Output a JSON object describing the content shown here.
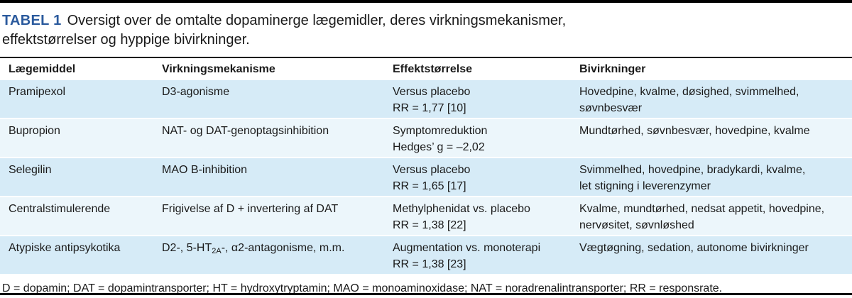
{
  "title": {
    "label": "TABEL 1",
    "line1": "Oversigt over de omtalte dopaminerge lægemidler, deres virkningsmekanismer,",
    "line2": "effektstørrelser og hyppige bivirkninger."
  },
  "table": {
    "headers": [
      "Lægemiddel",
      "Virkningsmekanisme",
      "Effektstørrelse",
      "Bivirkninger"
    ],
    "rows": [
      {
        "laegemiddel": "Pramipexol",
        "mech_pre": "D3-agonisme",
        "mech_sub": "",
        "mech_post": "",
        "effekt_line1": "Versus placebo",
        "effekt_line2": "RR = 1,77 [10]",
        "bivirk_line1": "Hovedpine, kvalme, døsighed, svimmelhed,",
        "bivirk_line2": "søvnbesvær"
      },
      {
        "laegemiddel": "Bupropion",
        "mech_pre": "NAT- og DAT-genoptagsinhibition",
        "mech_sub": "",
        "mech_post": "",
        "effekt_line1": "Symptomreduktion",
        "effekt_line2": "Hedges’ g = –2,02",
        "bivirk_line1": "Mundtørhed, søvnbesvær, hovedpine, kvalme",
        "bivirk_line2": ""
      },
      {
        "laegemiddel": "Selegilin",
        "mech_pre": "MAO B-inhibition",
        "mech_sub": "",
        "mech_post": "",
        "effekt_line1": "Versus placebo",
        "effekt_line2": "RR = 1,65 [17]",
        "bivirk_line1": "Svimmelhed, hovedpine, bradykardi, kvalme,",
        "bivirk_line2": "let stigning i leverenzymer"
      },
      {
        "laegemiddel": "Centralstimulerende",
        "mech_pre": "Frigivelse af D + invertering af DAT",
        "mech_sub": "",
        "mech_post": "",
        "effekt_line1": "Methylphenidat vs. placebo",
        "effekt_line2": "RR = 1,38 [22]",
        "bivirk_line1": "Kvalme, mundtørhed, nedsat appetit, hovedpine,",
        "bivirk_line2": "nervøsitet, søvnløshed"
      },
      {
        "laegemiddel": "Atypiske antipsykotika",
        "mech_pre": "D2-, 5-HT",
        "mech_sub": "2A",
        "mech_post": "-, α2-antagonisme, m.m.",
        "effekt_line1": "Augmentation vs. monoterapi",
        "effekt_line2": "RR = 1,38 [23]",
        "bivirk_line1": "Vægtøgning, sedation, autonome bivirkninger",
        "bivirk_line2": ""
      }
    ]
  },
  "footnote": "D = dopamin; DAT = dopamintransporter; HT = hydroxytryptamin; MAO = monoaminoxidase; NAT = noradrenalintransporter; RR = responsrate.",
  "colors": {
    "accent_blue": "#2b5a9d",
    "row_blue": "#d6ebf7",
    "row_pale": "#ecf6fb",
    "rule_black": "#000000"
  }
}
